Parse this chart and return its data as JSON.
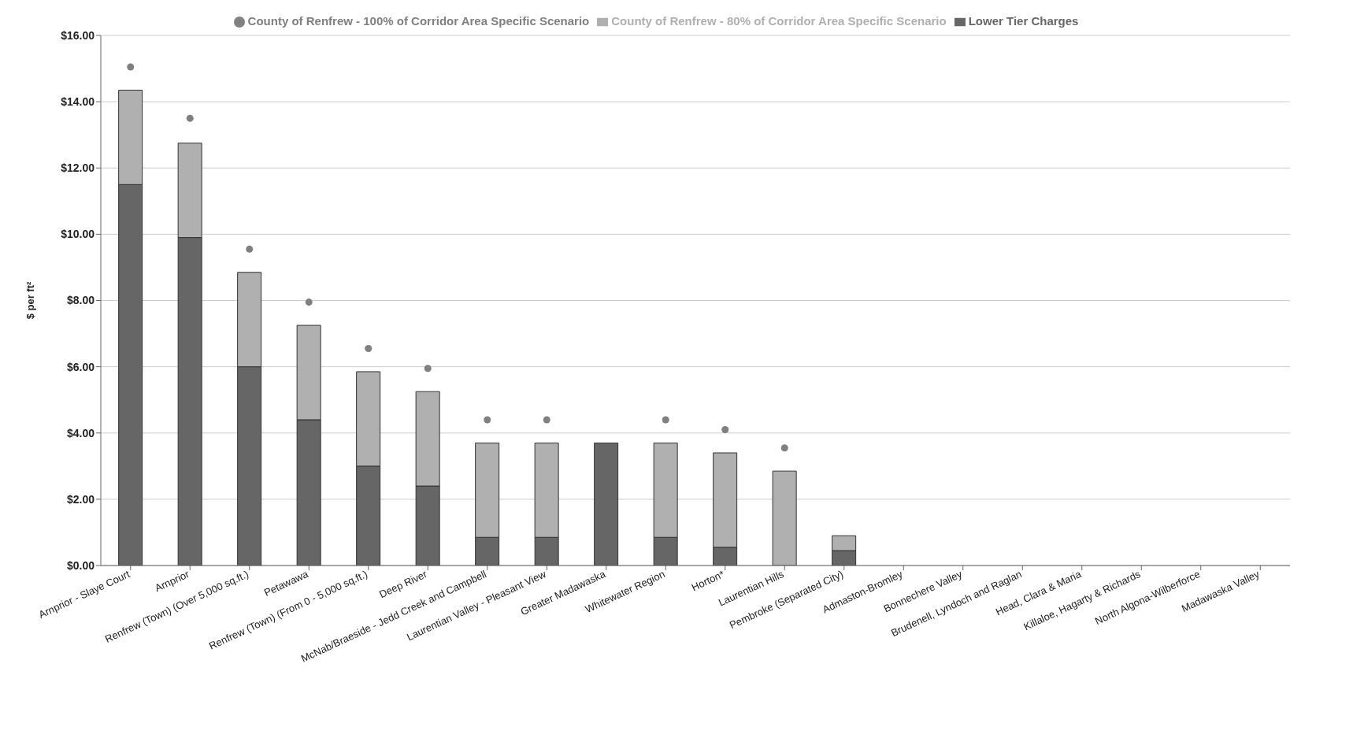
{
  "chart_data": {
    "type": "bar",
    "stacked": true,
    "ylabel": "$ per ft²",
    "categories": [
      "Arnprior - Slaye Court",
      "Arnprior",
      "Renfrew (Town) (Over 5,000 sq.ft.)",
      "Petawawa",
      "Renfrew (Town) (From 0 - 5,000 sq.ft.)",
      "Deep River",
      "McNab/Braeside - Jedd Creek and Campbell",
      "Laurentian Valley - Pleasant View",
      "Greater Madawaska",
      "Whitewater Region",
      "Horton*",
      "Laurentian Hills",
      "Pembroke (Separated City)",
      "Admaston-Bromley",
      "Bonnechere Valley",
      "Brudenell, Lyndoch and Raglan",
      "Head, Clara & Maria",
      "Killaloe, Hagarty & Richards",
      "North Algona-Wilberforce",
      "Madawaska Valley"
    ],
    "series": [
      {
        "name": "Lower Tier Charges",
        "color": "#666666",
        "values": [
          11.5,
          9.9,
          6.0,
          4.4,
          3.0,
          2.4,
          0.85,
          0.85,
          3.7,
          0.85,
          0.55,
          0,
          0.45,
          0,
          0,
          0,
          0,
          0,
          0,
          0
        ]
      },
      {
        "name": "County of Renfrew - 80% of Corridor Area Specific Scenario",
        "color": "#b0b0b0",
        "values": [
          2.85,
          2.85,
          2.85,
          2.85,
          2.85,
          2.85,
          2.85,
          2.85,
          0,
          2.85,
          2.85,
          2.85,
          0.45,
          0,
          0,
          0,
          0,
          0,
          0,
          0
        ]
      },
      {
        "name": "County of Renfrew - 100% of Corridor Area Specific Scenario",
        "type": "scatter",
        "marker": "circle",
        "color": "#808080",
        "values": [
          15.05,
          13.5,
          9.55,
          7.95,
          6.55,
          5.95,
          4.4,
          4.4,
          null,
          4.4,
          4.1,
          3.55,
          null,
          null,
          null,
          null,
          null,
          null,
          null,
          null
        ]
      }
    ],
    "ylim": [
      0,
      16
    ],
    "yticks": [
      {
        "value": 0,
        "label": "$0.00"
      },
      {
        "value": 2,
        "label": "$2.00"
      },
      {
        "value": 4,
        "label": "$4.00"
      },
      {
        "value": 6,
        "label": "$6.00"
      },
      {
        "value": 8,
        "label": "$8.00"
      },
      {
        "value": 10,
        "label": "$10.00"
      },
      {
        "value": 12,
        "label": "$12.00"
      },
      {
        "value": 14,
        "label": "$14.00"
      },
      {
        "value": 16,
        "label": "$16.00"
      }
    ],
    "grid": "y",
    "legend": "top"
  }
}
